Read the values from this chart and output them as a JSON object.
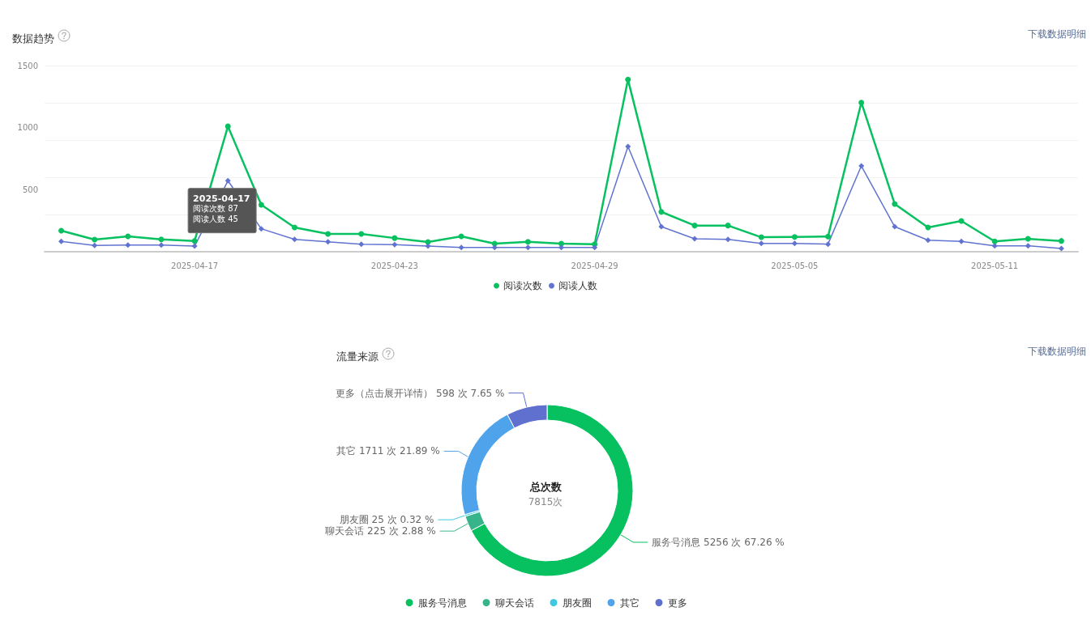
{
  "chart_data": [
    {
      "type": "line",
      "title": "数据趋势",
      "categories": [
        null,
        null,
        null,
        null,
        "2025-04-17",
        null,
        null,
        null,
        null,
        null,
        "2025-04-23",
        null,
        null,
        null,
        null,
        null,
        "2025-04-29",
        null,
        null,
        null,
        null,
        null,
        "2025-05-05",
        null,
        null,
        null,
        null,
        null,
        "2025-05-11",
        null,
        null
      ],
      "series": [
        {
          "name": "阅读次数",
          "color": "#07c160",
          "marker": "circle",
          "values": [
            170,
            98,
            124,
            100,
            87,
            1010,
            378,
            196,
            143,
            143,
            110,
            78,
            124,
            65,
            80,
            65,
            60,
            1387,
            321,
            211,
            211,
            117,
            119,
            122,
            1202,
            385,
            196,
            248,
            83,
            104,
            87
          ]
        },
        {
          "name": "阅读人数",
          "color": "#6173d0",
          "marker": "diamond",
          "values": [
            83,
            50,
            54,
            54,
            45,
            572,
            185,
            100,
            80,
            61,
            57,
            46,
            35,
            35,
            35,
            35,
            35,
            848,
            202,
            104,
            100,
            67,
            67,
            61,
            691,
            202,
            93,
            83,
            48,
            48,
            26
          ]
        }
      ],
      "ylim": [
        0,
        1500
      ],
      "yticks": [
        500,
        1000,
        1500
      ],
      "grid": "y",
      "legend": "bottom",
      "annotations": [
        "下载数据明细",
        {
          "text": "2025-04-17\n阅读次数 87\n阅读人数 45",
          "x": "2025-04-17",
          "y": 87
        }
      ]
    },
    {
      "type": "donut",
      "title": "流量来源",
      "categories": [
        "服务号消息",
        "聊天会话",
        "朋友圈",
        "其它",
        "更多"
      ],
      "values": [
        5256,
        225,
        25,
        1711,
        598
      ],
      "colors": [
        "#07c160",
        "#38b48b",
        "#40c8e0",
        "#4fa3ea",
        "#5f70cf"
      ],
      "value_labels": [
        "服务号消息 5256 次 67.26 %",
        "聊天会话 225 次 2.88 %",
        "朋友圈 25 次 0.32 %",
        "其它 1711 次 21.89 %",
        "更多（点击展开详情） 598 次 7.65 %"
      ],
      "legend": "bottom",
      "annotations": [
        "总次数",
        "7815次",
        "下载数据明细"
      ]
    }
  ]
}
